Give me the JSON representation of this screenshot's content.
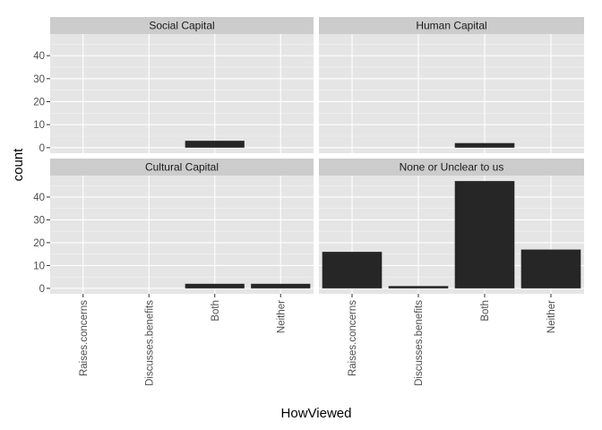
{
  "chart_data": {
    "type": "bar",
    "facets": [
      {
        "title": "Social Capital",
        "values": [
          0,
          0,
          3,
          0
        ]
      },
      {
        "title": "Human Capital",
        "values": [
          0,
          0,
          2,
          0
        ]
      },
      {
        "title": "Cultural Capital",
        "values": [
          0,
          0,
          2,
          2
        ]
      },
      {
        "title": "None or Unclear to us",
        "values": [
          16,
          1,
          47,
          17
        ]
      }
    ],
    "categories": [
      "Raises.concerns",
      "Discusses.benefits",
      "Both",
      "Neither"
    ],
    "xlabel": "HowViewed",
    "ylabel": "count",
    "y_ticks": [
      0,
      10,
      20,
      30,
      40
    ],
    "ylim": [
      -2.4,
      49.4
    ],
    "grid": true,
    "layout": "2x2 facet grid",
    "colors": {
      "bar": "#262626",
      "panel": "#e5e5e5",
      "strip": "#cccccc",
      "grid_major": "#ffffff",
      "grid_minor": "#f2f2f2"
    }
  }
}
